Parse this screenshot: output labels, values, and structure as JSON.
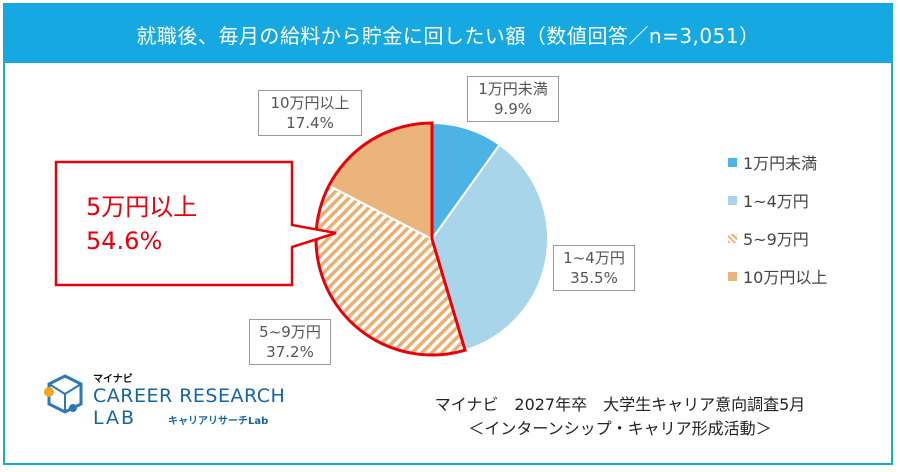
{
  "chart_data": {
    "type": "pie",
    "title": "就職後、毎月の給料から貯金に回したい額（数値回答／n=3,051）",
    "slices": [
      {
        "label": "1万円未満",
        "value": 9.9,
        "display": "9.9%",
        "color": "#4cb3e6",
        "pattern": "solid"
      },
      {
        "label": "1~4万円",
        "value": 35.5,
        "display": "35.5%",
        "color": "#a8d5ea",
        "pattern": "solid"
      },
      {
        "label": "5~9万円",
        "value": 37.2,
        "display": "37.2%",
        "color": "#e9b071",
        "pattern": "hatch"
      },
      {
        "label": "10万円以上",
        "value": 17.4,
        "display": "17.4%",
        "color": "#ebb47b",
        "pattern": "solid"
      }
    ],
    "legend_position": "right",
    "highlight": {
      "label": "5万円以上",
      "value": "54.6%",
      "color": "#e8000b"
    }
  },
  "source": {
    "line1": "マイナビ　2027年卒　大学生キャリア意向調査5月",
    "line2": "＜インターンシップ・キャリア形成活動＞"
  },
  "logo": {
    "sub": "マイナビ",
    "main": "CAREER RESEARCH",
    "lab": "LAB",
    "lab_sub": "キャリアリサーチLab"
  }
}
